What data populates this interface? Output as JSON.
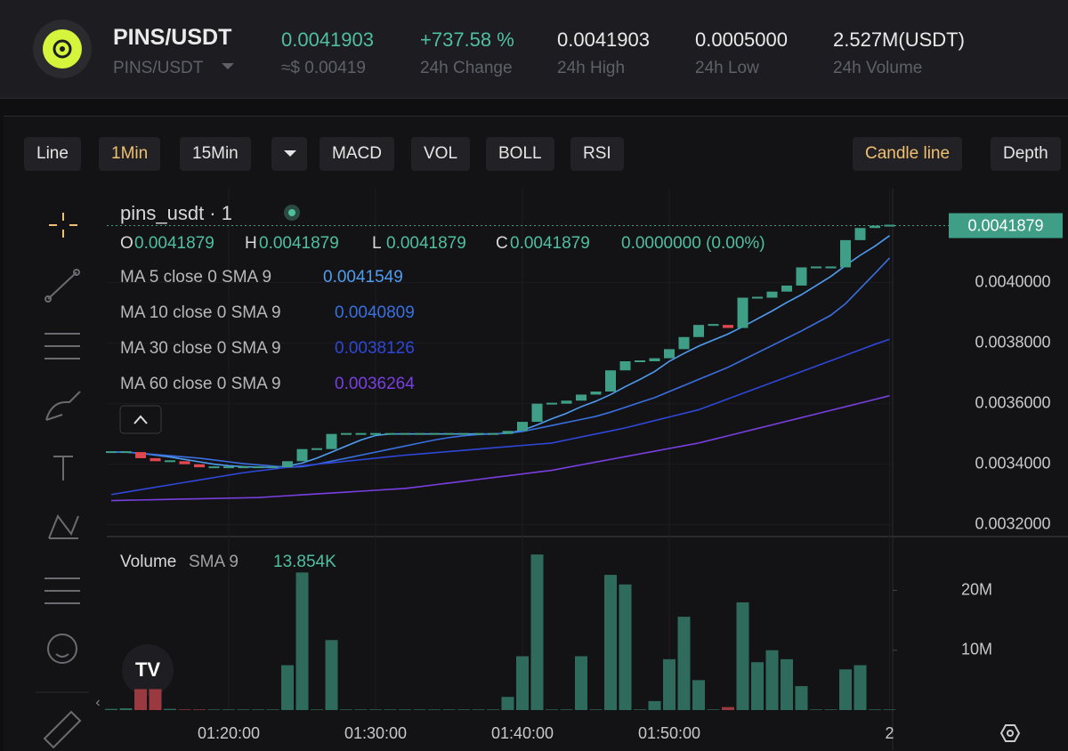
{
  "header": {
    "pair": "PINS/USDT",
    "pair_select": "PINS/USDT",
    "last_price": "0.0041903",
    "last_price_usd": "≈$ 0.00419",
    "change": "+737.58 %",
    "change_label": "24h Change",
    "high": "0.0041903",
    "high_label": "24h High",
    "low": "0.0005000",
    "low_label": "24h Low",
    "volume": "2.527M(USDT)",
    "volume_label": "24h Volume"
  },
  "toolbar": {
    "buttons": [
      "Line",
      "1Min",
      "15Min",
      "MACD",
      "VOL",
      "BOLL",
      "RSI"
    ],
    "right_buttons": [
      "Candle line",
      "Depth"
    ]
  },
  "chart_data": {
    "type": "candlestick",
    "title": "pins_usdt · 1",
    "legend_labels": {
      "o": "O",
      "h": "H",
      "l": "L",
      "c": "C",
      "change": "0.0000000 (0.00%)"
    },
    "categories": [
      "01:12:00",
      "01:13:00",
      "01:14:00",
      "01:15:00",
      "01:16:00",
      "01:17:00",
      "01:18:00",
      "01:19:00",
      "01:20:00",
      "01:21:00",
      "01:22:00",
      "01:23:00",
      "01:24:00",
      "01:25:00",
      "01:26:00",
      "01:27:00",
      "01:28:00",
      "01:29:00",
      "01:30:00",
      "01:31:00",
      "01:32:00",
      "01:33:00",
      "01:34:00",
      "01:35:00",
      "01:36:00",
      "01:37:00",
      "01:38:00",
      "01:39:00",
      "01:40:00",
      "01:41:00",
      "01:42:00",
      "01:43:00",
      "01:44:00",
      "01:45:00",
      "01:46:00",
      "01:47:00",
      "01:48:00",
      "01:49:00",
      "01:50:00",
      "01:51:00",
      "01:52:00",
      "01:53:00",
      "01:54:00",
      "01:55:00",
      "01:56:00",
      "01:57:00",
      "01:58:00",
      "01:59:00",
      "02:00:00",
      "02:01:00",
      "02:02:00",
      "02:03:00",
      "02:04:00",
      "02:05:00"
    ],
    "open": [
      0.00344,
      0.00344,
      0.00344,
      0.00342,
      0.00341,
      0.00341,
      0.0034,
      0.00339,
      0.00339,
      0.00339,
      0.00339,
      0.00339,
      0.00339,
      0.00341,
      0.00345,
      0.00345,
      0.0035,
      0.0035,
      0.0035,
      0.0035,
      0.0035,
      0.0035,
      0.0035,
      0.0035,
      0.0035,
      0.0035,
      0.0035,
      0.0035,
      0.00351,
      0.00354,
      0.0036,
      0.0036,
      0.00361,
      0.00363,
      0.00364,
      0.00371,
      0.00374,
      0.00374,
      0.00375,
      0.00378,
      0.00382,
      0.00386,
      0.00386,
      0.00385,
      0.00395,
      0.00395,
      0.00397,
      0.00399,
      0.00405,
      0.00405,
      0.00405,
      0.00414,
      0.00418,
      0.0041879
    ],
    "close": [
      0.00344,
      0.00344,
      0.00342,
      0.00341,
      0.00341,
      0.0034,
      0.00339,
      0.00339,
      0.00339,
      0.00339,
      0.00339,
      0.00339,
      0.00341,
      0.00345,
      0.00345,
      0.0035,
      0.0035,
      0.0035,
      0.0035,
      0.0035,
      0.0035,
      0.0035,
      0.0035,
      0.0035,
      0.0035,
      0.0035,
      0.0035,
      0.00351,
      0.00354,
      0.0036,
      0.0036,
      0.00361,
      0.00363,
      0.00364,
      0.00371,
      0.00374,
      0.00374,
      0.00375,
      0.00378,
      0.00382,
      0.00386,
      0.00386,
      0.00385,
      0.00395,
      0.00395,
      0.00397,
      0.00399,
      0.00405,
      0.00405,
      0.00405,
      0.00414,
      0.00418,
      0.0041879,
      0.0041879
    ],
    "up_color": "#3e9e86",
    "down_color": "#e0474f",
    "series": [
      {
        "name": "MA 5 close 0 SMA 9",
        "color": "#4f9cf0",
        "values": [
          0.00344,
          0.00344,
          0.003436,
          0.00343,
          0.003424,
          0.003416,
          0.003408,
          0.0034,
          0.003395,
          0.003392,
          0.00339,
          0.00339,
          0.003394,
          0.003404,
          0.00342,
          0.00344,
          0.00346,
          0.00348,
          0.003495,
          0.0035,
          0.0035,
          0.0035,
          0.0035,
          0.0035,
          0.0035,
          0.0035,
          0.0035,
          0.003503,
          0.003512,
          0.00353,
          0.00355,
          0.003568,
          0.00359,
          0.003608,
          0.00363,
          0.003656,
          0.00368,
          0.003706,
          0.00374,
          0.003766,
          0.00379,
          0.00381,
          0.00383,
          0.003854,
          0.00388,
          0.003906,
          0.003934,
          0.00396,
          0.00399,
          0.00402,
          0.004056,
          0.00409,
          0.00412,
          0.0041549
        ]
      },
      {
        "name": "MA 10 close 0 SMA 9",
        "color": "#3a6fe0",
        "values": [
          0.00344,
          0.00344,
          0.003436,
          0.003432,
          0.003428,
          0.003424,
          0.00342,
          0.003414,
          0.003408,
          0.003402,
          0.003398,
          0.003394,
          0.00339,
          0.003392,
          0.0034,
          0.00341,
          0.00342,
          0.00343,
          0.00344,
          0.00345,
          0.00346,
          0.00347,
          0.00348,
          0.003488,
          0.003494,
          0.003498,
          0.0035,
          0.003502,
          0.003508,
          0.003518,
          0.003528,
          0.003538,
          0.003548,
          0.003558,
          0.003572,
          0.003588,
          0.003604,
          0.00362,
          0.00364,
          0.00366,
          0.00368,
          0.0037,
          0.00372,
          0.003744,
          0.003768,
          0.003792,
          0.003816,
          0.00384,
          0.003866,
          0.003892,
          0.00393,
          0.00398,
          0.00403,
          0.0040809
        ]
      },
      {
        "name": "MA 30 close 0 SMA 9",
        "color": "#2f47d6",
        "values": [
          0.0033,
          0.003308,
          0.003316,
          0.003324,
          0.003332,
          0.00334,
          0.003348,
          0.003356,
          0.003364,
          0.003372,
          0.003378,
          0.003384,
          0.00339,
          0.003395,
          0.0034,
          0.003405,
          0.00341,
          0.003415,
          0.00342,
          0.003425,
          0.00343,
          0.003434,
          0.003438,
          0.003442,
          0.003446,
          0.00345,
          0.003454,
          0.003458,
          0.003462,
          0.003466,
          0.00347,
          0.00348,
          0.00349,
          0.0035,
          0.00351,
          0.00352,
          0.003532,
          0.003544,
          0.003556,
          0.003568,
          0.00358,
          0.003598,
          0.003616,
          0.003634,
          0.003652,
          0.00367,
          0.003688,
          0.003706,
          0.003724,
          0.003742,
          0.00376,
          0.003778,
          0.003796,
          0.0038126
        ]
      },
      {
        "name": "MA 60 close 0 SMA 9",
        "color": "#7a3fe0",
        "values": [
          0.00328,
          0.003281,
          0.003282,
          0.003283,
          0.003284,
          0.003285,
          0.003286,
          0.003287,
          0.003288,
          0.003289,
          0.00329,
          0.003293,
          0.003296,
          0.003299,
          0.003302,
          0.003305,
          0.003308,
          0.003311,
          0.003314,
          0.003317,
          0.00332,
          0.003326,
          0.003332,
          0.003338,
          0.003344,
          0.00335,
          0.003356,
          0.003362,
          0.003368,
          0.003374,
          0.00338,
          0.003389,
          0.003398,
          0.003407,
          0.003416,
          0.003425,
          0.003434,
          0.003443,
          0.003452,
          0.003461,
          0.00347,
          0.003482,
          0.003494,
          0.003506,
          0.003518,
          0.00353,
          0.003542,
          0.003554,
          0.003566,
          0.003578,
          0.00359,
          0.003602,
          0.003614,
          0.0036264
        ]
      }
    ],
    "ylim": [
      0.00317,
      0.00431
    ],
    "yticks": [
      {
        "value": 0.0032,
        "label": "0.0032000"
      },
      {
        "value": 0.0034,
        "label": "0.0034000"
      },
      {
        "value": 0.0036,
        "label": "0.0036000"
      },
      {
        "value": 0.0038,
        "label": "0.0038000"
      },
      {
        "value": 0.004,
        "label": "0.0040000"
      }
    ],
    "xticks": [
      "01:20:00",
      "01:30:00",
      "01:40:00",
      "01:50:00",
      {
        "value": "02:05:00",
        "label": "2"
      }
    ],
    "volume": {
      "title": "Volume",
      "sma_label": "SMA 9",
      "sma_value": "13.854K",
      "values": [
        200000,
        300000,
        3500000,
        3500000,
        200000,
        100000,
        100000,
        100000,
        100000,
        100000,
        100000,
        100000,
        7500000,
        23000000,
        100000,
        11700000,
        100000,
        100000,
        100000,
        100000,
        100000,
        100000,
        100000,
        100000,
        100000,
        100000,
        100000,
        2200000,
        9000000,
        26000000,
        100000,
        100000,
        9000000,
        100000,
        22600000,
        21000000,
        100000,
        1500000,
        8500000,
        15600000,
        5000000,
        100000,
        500000,
        18000000,
        8000000,
        10000000,
        8500000,
        4000000,
        100000,
        100000,
        6800000,
        7500000,
        100000,
        100000
      ],
      "ylim": [
        0,
        29000000
      ],
      "yticks": [
        {
          "value": 10000000,
          "label": "10M"
        },
        {
          "value": 20000000,
          "label": "20M"
        }
      ]
    }
  }
}
